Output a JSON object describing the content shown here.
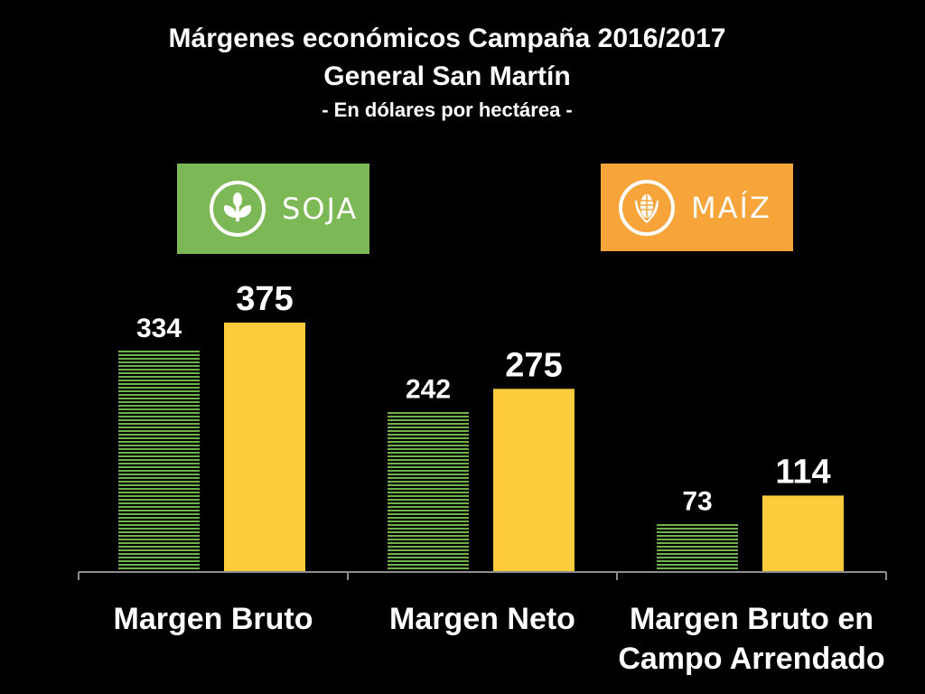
{
  "title": "Márgenes económicos Campaña 2016/2017",
  "subtitle": "General San Martín",
  "unit_note": "- En dólares por hectárea -",
  "legend": [
    {
      "label": "SOJA",
      "color": "#7DB856",
      "icon": "plant-icon"
    },
    {
      "label": "MAÍZ",
      "color": "#F7A53A",
      "icon": "corn-icon"
    }
  ],
  "colors": {
    "soja_bar": "#6FB24A",
    "maiz_bar": "#FFCC3D",
    "background": "#000000",
    "axis": "#8C8C8C"
  },
  "chart_data": {
    "type": "bar",
    "categories": [
      [
        "Margen Bruto"
      ],
      [
        "Margen Neto"
      ],
      [
        "Margen Bruto en",
        "Campo Arrendado"
      ]
    ],
    "series": [
      {
        "name": "SOJA",
        "values": [
          334,
          242,
          73
        ]
      },
      {
        "name": "MAÍZ",
        "values": [
          375,
          275,
          114
        ]
      }
    ],
    "ylim": [
      0,
      375
    ],
    "grid": false,
    "legend_position": "top"
  }
}
